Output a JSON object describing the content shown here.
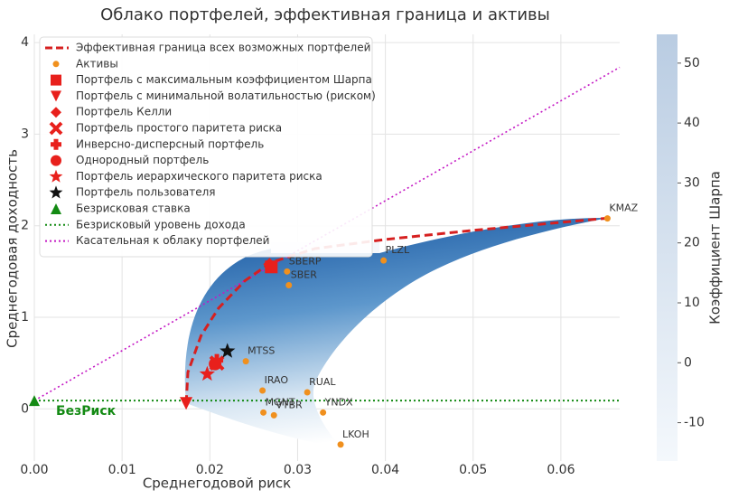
{
  "chart_data": {
    "type": "scatter",
    "title": "Облако портфелей, эффективная граница и активы",
    "x_label": "Среднегодовой риск",
    "y_label": "Среднегодовая доходность",
    "xlim": [
      0,
      0.0667
    ],
    "ylim": [
      -0.57,
      4.09
    ],
    "xticks": [
      {
        "value": 0,
        "label": "0.00"
      },
      0.01,
      0.02,
      0.03,
      0.04,
      0.05,
      0.06
    ],
    "yticks": [
      0,
      1,
      2,
      3,
      4
    ],
    "grid": true,
    "colorbar": {
      "label": "Коэффициент Шарпа",
      "lim": [
        -16.4,
        54.8
      ],
      "ticks": [
        -10,
        0,
        10,
        20,
        30,
        40,
        50
      ]
    },
    "frontier": {
      "name": "Эффективная граница всех возможных портфелей",
      "color": "#d62020",
      "x": [
        0.0173,
        0.0175,
        0.019,
        0.021,
        0.024,
        0.027,
        0.032,
        0.04,
        0.05,
        0.065
      ],
      "y": [
        0.06,
        0.4,
        0.8,
        1.1,
        1.4,
        1.6,
        1.75,
        1.85,
        1.95,
        2.08
      ]
    },
    "assets": {
      "name": "Активы",
      "color": "#f0901e",
      "labels": [
        "KMAZ",
        "PLZL",
        "SBERP",
        "SBER",
        "MTSS",
        "IRAO",
        "RUAL",
        "MGNT",
        "VTBR",
        "YNDX",
        "LKOH"
      ],
      "x": [
        0.0653,
        0.0398,
        0.0288,
        0.029,
        0.0241,
        0.026,
        0.0311,
        0.0261,
        0.0273,
        0.0329,
        0.0349
      ],
      "y": [
        2.08,
        1.62,
        1.5,
        1.35,
        0.52,
        0.2,
        0.18,
        -0.04,
        -0.07,
        -0.04,
        -0.39
      ]
    },
    "portfolios": [
      {
        "name": "Портфель с максимальным коэффициентом Шарпа",
        "marker": "square",
        "color": "#e8201c",
        "x": 0.027,
        "y": 1.55
      },
      {
        "name": "Портфель с минимальной волатильностью (риском)",
        "marker": "triangle-down",
        "color": "#e8201c",
        "x": 0.0173,
        "y": 0.06
      },
      {
        "name": "Портфель Келли",
        "marker": "diamond",
        "color": "#e8201c",
        "x": 0.0268,
        "y": 1.58
      },
      {
        "name": "Портфель простого паритета риска",
        "marker": "x",
        "color": "#e8201c",
        "x": 0.0208,
        "y": 0.5
      },
      {
        "name": "Инверсно-дисперсный портфель",
        "marker": "plus",
        "color": "#e8201c",
        "x": 0.0208,
        "y": 0.53
      },
      {
        "name": "Однородный портфель",
        "marker": "circle",
        "color": "#e8201c",
        "x": 0.0206,
        "y": 0.49
      },
      {
        "name": "Портфель иерархического паритета риска",
        "marker": "star",
        "color": "#e8201c",
        "x": 0.0197,
        "y": 0.38
      },
      {
        "name": "Портфель пользователя",
        "marker": "star",
        "color": "#111111",
        "x": 0.022,
        "y": 0.63
      }
    ],
    "risk_free": {
      "name": "Безрисковая ставка",
      "color": "#138a13",
      "x": 0,
      "y": 0.09,
      "label": "БезРиск"
    },
    "risk_free_line": {
      "name": "Безрисковый уровень дохода",
      "color": "#138a13",
      "y": 0.09
    },
    "tangent": {
      "name": "Касательная к облаку портфелей",
      "color": "#c418c4",
      "x": [
        0,
        0.0667
      ],
      "y": [
        0.09,
        3.73
      ]
    }
  }
}
